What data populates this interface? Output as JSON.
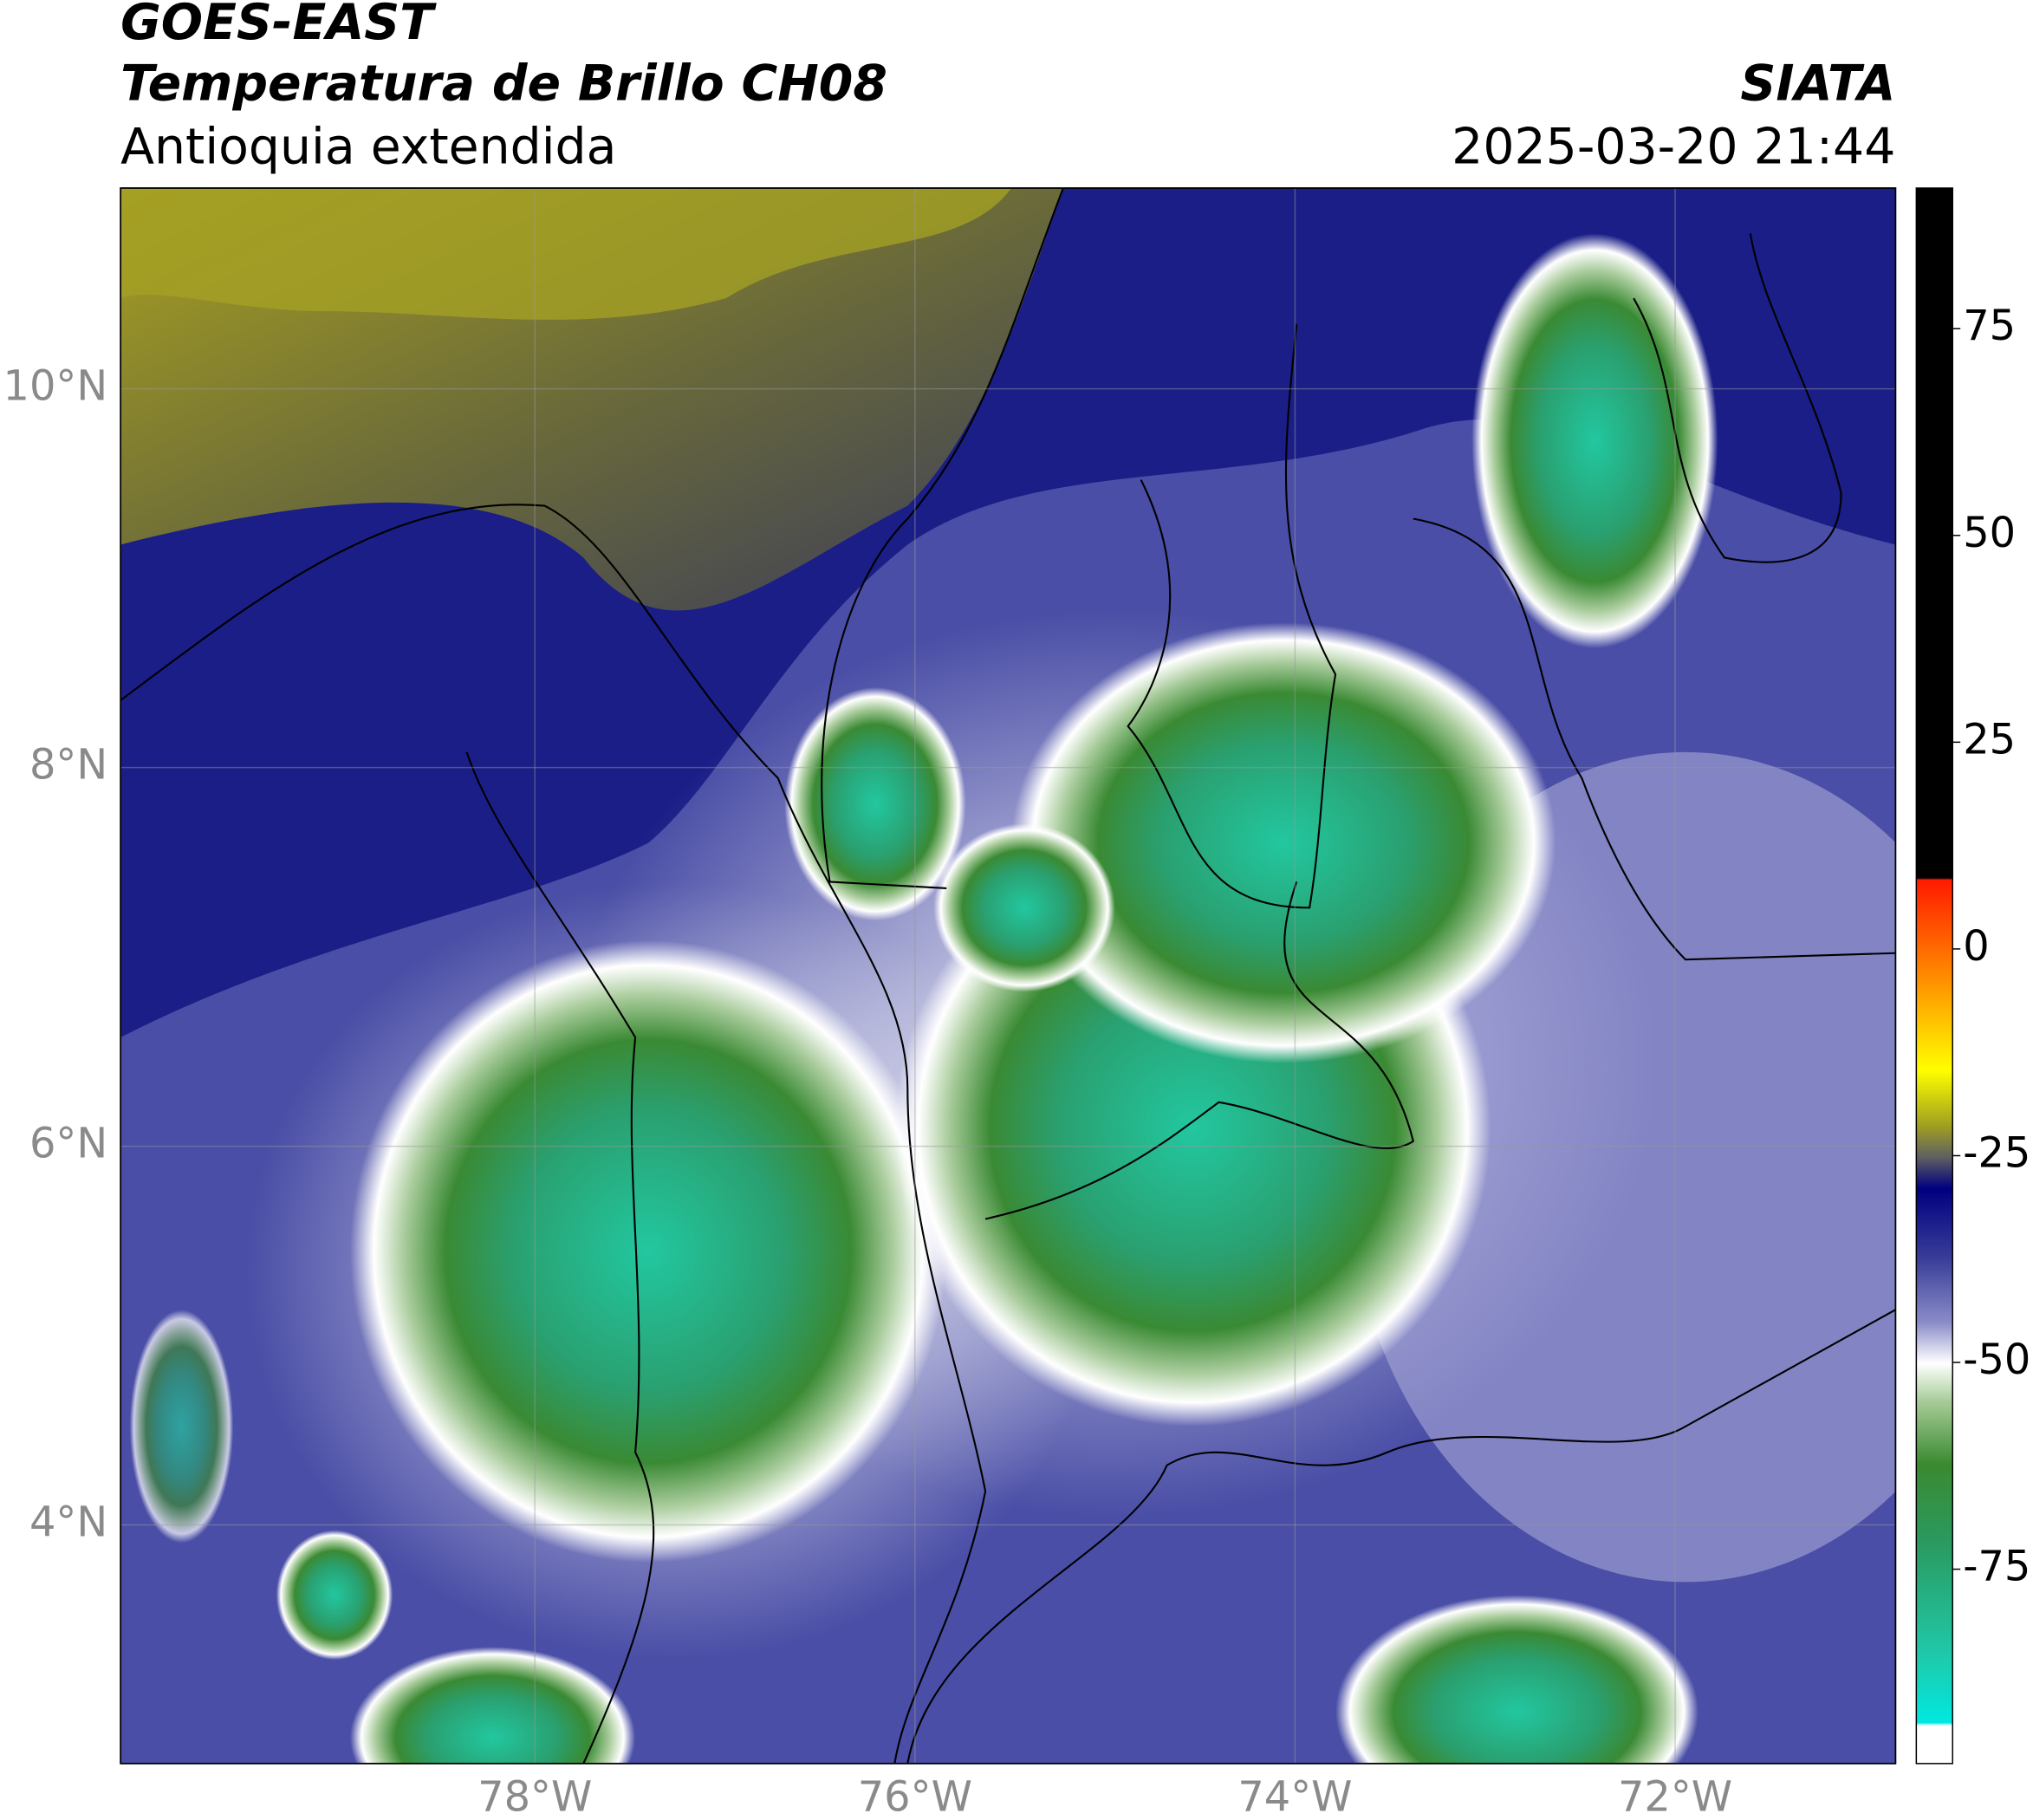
{
  "map": {
    "title": "GOES-EAST",
    "subtitle": "Temperatura de Brillo CH08",
    "region": "Antioquia extendida",
    "source": "SIATA",
    "datetime": "2025-03-20 21:44",
    "xlim": [
      -80.18,
      -70.84
    ],
    "ylim": [
      2.74,
      11.06
    ],
    "xticks": [
      {
        "value": -78,
        "label": "78°W"
      },
      {
        "value": -76,
        "label": "76°W"
      },
      {
        "value": -74,
        "label": "74°W"
      },
      {
        "value": -72,
        "label": "72°W"
      }
    ],
    "yticks": [
      {
        "value": 4,
        "label": "4°N"
      },
      {
        "value": 6,
        "label": "6°N"
      },
      {
        "value": 8,
        "label": "8°N"
      },
      {
        "value": 10,
        "label": "10°N"
      }
    ],
    "colorbar": {
      "lim": [
        -98.5,
        92
      ],
      "ticks": [
        -75,
        -50,
        -25,
        0,
        25,
        50,
        75
      ]
    }
  }
}
